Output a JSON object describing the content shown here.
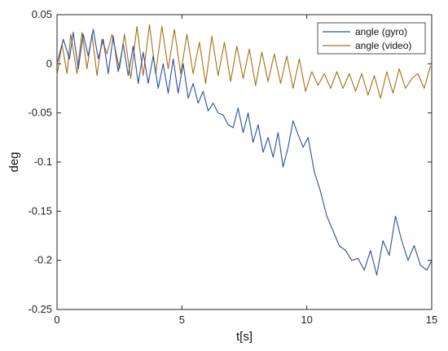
{
  "chart_data": {
    "type": "line",
    "xlabel": "t[s]",
    "ylabel": "deg",
    "xlim": [
      0,
      15
    ],
    "ylim": [
      -0.25,
      0.05
    ],
    "xticks": [
      0,
      5,
      10,
      15
    ],
    "yticks": [
      0.05,
      0,
      -0.05,
      -0.1,
      -0.15,
      -0.2,
      -0.25
    ],
    "xtick_labels": [
      "0",
      "5",
      "10",
      "15"
    ],
    "ytick_labels": [
      "0.05",
      "0",
      "-0.05",
      "-0.1",
      "-0.15",
      "-0.2",
      "-0.25"
    ],
    "legend_position": "top-right",
    "grid": false,
    "series": [
      {
        "name": "angle (gyro)",
        "color": "#2b4fa3",
        "x": [
          0.0,
          0.25,
          0.5,
          0.65,
          0.85,
          1.05,
          1.25,
          1.45,
          1.65,
          1.85,
          2.05,
          2.25,
          2.45,
          2.65,
          2.85,
          3.05,
          3.25,
          3.45,
          3.65,
          3.85,
          4.05,
          4.25,
          4.45,
          4.65,
          4.85,
          5.05,
          5.25,
          5.45,
          5.65,
          5.85,
          6.05,
          6.25,
          6.45,
          6.65,
          6.85,
          7.05,
          7.25,
          7.45,
          7.65,
          7.85,
          8.05,
          8.25,
          8.45,
          8.65,
          8.85,
          9.05,
          9.25,
          9.45,
          9.65,
          9.85,
          10.05,
          10.3,
          10.55,
          10.8,
          11.05,
          11.3,
          11.55,
          11.8,
          12.05,
          12.3,
          12.55,
          12.8,
          13.05,
          13.3,
          13.55,
          13.8,
          14.05,
          14.3,
          14.55,
          14.8,
          15.0
        ],
        "y": [
          0.0,
          0.025,
          0.005,
          0.032,
          -0.005,
          0.03,
          0.008,
          0.035,
          0.005,
          0.025,
          -0.01,
          0.028,
          -0.008,
          0.02,
          -0.012,
          0.018,
          -0.02,
          0.012,
          -0.02,
          0.008,
          -0.025,
          0.0,
          -0.03,
          0.005,
          -0.03,
          0.0,
          -0.035,
          -0.02,
          -0.04,
          -0.028,
          -0.048,
          -0.04,
          -0.05,
          -0.052,
          -0.062,
          -0.065,
          -0.045,
          -0.07,
          -0.05,
          -0.08,
          -0.062,
          -0.09,
          -0.075,
          -0.095,
          -0.07,
          -0.105,
          -0.085,
          -0.058,
          -0.072,
          -0.085,
          -0.075,
          -0.11,
          -0.13,
          -0.155,
          -0.17,
          -0.185,
          -0.19,
          -0.2,
          -0.198,
          -0.21,
          -0.19,
          -0.215,
          -0.18,
          -0.195,
          -0.155,
          -0.18,
          -0.2,
          -0.185,
          -0.205,
          -0.21,
          -0.2
        ]
      },
      {
        "name": "angle (video)",
        "color": "#a86f14",
        "x": [
          0.0,
          0.2,
          0.4,
          0.55,
          0.8,
          1.0,
          1.2,
          1.4,
          1.6,
          1.8,
          2.0,
          2.2,
          2.5,
          2.7,
          2.95,
          3.2,
          3.45,
          3.7,
          3.95,
          4.2,
          4.45,
          4.7,
          4.95,
          5.2,
          5.45,
          5.7,
          5.95,
          6.2,
          6.45,
          6.7,
          6.95,
          7.2,
          7.45,
          7.7,
          7.95,
          8.2,
          8.45,
          8.7,
          8.95,
          9.2,
          9.45,
          9.7,
          9.95,
          10.2,
          10.45,
          10.7,
          10.95,
          11.2,
          11.45,
          11.7,
          11.95,
          12.2,
          12.45,
          12.7,
          12.95,
          13.2,
          13.45,
          13.7,
          13.95,
          14.2,
          14.45,
          14.7,
          14.95
        ],
        "y": [
          -0.012,
          0.02,
          -0.01,
          0.03,
          -0.01,
          0.032,
          -0.005,
          0.03,
          -0.012,
          0.025,
          0.01,
          0.03,
          -0.005,
          0.03,
          -0.015,
          0.038,
          -0.012,
          0.04,
          -0.01,
          0.038,
          -0.005,
          0.035,
          -0.01,
          0.03,
          -0.01,
          0.022,
          -0.02,
          0.028,
          -0.012,
          0.022,
          -0.018,
          0.018,
          -0.015,
          0.015,
          -0.022,
          0.012,
          -0.018,
          0.01,
          -0.02,
          0.008,
          -0.025,
          0.005,
          -0.028,
          -0.008,
          -0.022,
          -0.01,
          -0.025,
          -0.008,
          -0.025,
          -0.01,
          -0.028,
          -0.01,
          -0.032,
          -0.012,
          -0.035,
          -0.008,
          -0.03,
          -0.005,
          -0.025,
          -0.015,
          -0.01,
          -0.025,
          -0.002
        ]
      }
    ]
  }
}
